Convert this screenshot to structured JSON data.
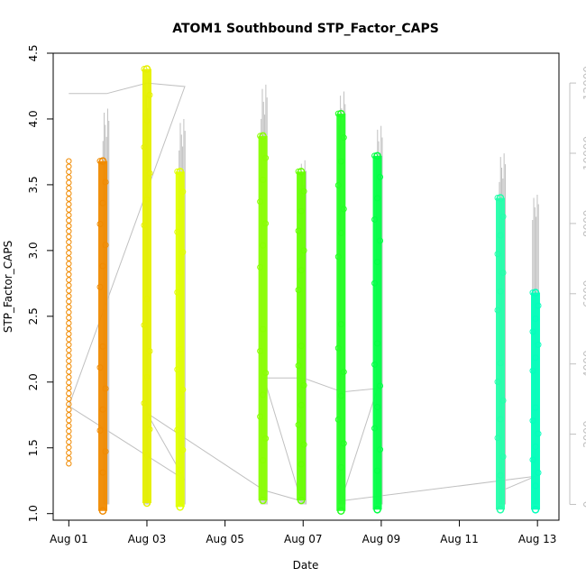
{
  "chart_data": {
    "type": "scatter",
    "title": "ATOM1 Southbound STP_Factor_CAPS",
    "xlabel": "Date",
    "ylabel": "STP_Factor_CAPS",
    "x_ticks": [
      "Aug 01",
      "Aug 03",
      "Aug 05",
      "Aug 07",
      "Aug 09",
      "Aug 11",
      "Aug 13"
    ],
    "x_tick_days": [
      1,
      3,
      5,
      7,
      9,
      11,
      13
    ],
    "xlim_days": [
      0.6,
      13.55
    ],
    "ylim": [
      0.95,
      4.5
    ],
    "y_ticks": [
      1.0,
      1.5,
      2.0,
      2.5,
      3.0,
      3.5,
      4.0,
      4.5
    ],
    "right_axis": {
      "ylim": [
        -450,
        12850
      ],
      "ticks": [
        0,
        2000,
        4000,
        6000,
        8000,
        10000,
        12000
      ],
      "color": "#c0c0c0"
    },
    "clusters": [
      {
        "day": 1.0,
        "min": 1.38,
        "max": 3.68,
        "color": "#f08a00",
        "style": "sparse"
      },
      {
        "day": 1.87,
        "min": 1.02,
        "max": 3.68,
        "color": "#f08a00",
        "style": "dense"
      },
      {
        "day": 3.0,
        "min": 1.08,
        "max": 4.38,
        "color": "#e6f000",
        "style": "dense"
      },
      {
        "day": 3.85,
        "min": 1.05,
        "max": 3.6,
        "color": "#e0ff00",
        "style": "dense"
      },
      {
        "day": 5.97,
        "min": 1.1,
        "max": 3.87,
        "color": "#88ff00",
        "style": "dense"
      },
      {
        "day": 6.95,
        "min": 1.1,
        "max": 3.6,
        "color": "#66ff00",
        "style": "dense"
      },
      {
        "day": 7.97,
        "min": 1.02,
        "max": 4.04,
        "color": "#22ff22",
        "style": "dense"
      },
      {
        "day": 8.9,
        "min": 1.03,
        "max": 3.72,
        "color": "#00ff44",
        "style": "dense"
      },
      {
        "day": 12.05,
        "min": 1.03,
        "max": 3.4,
        "color": "#22ffaa",
        "style": "dense"
      },
      {
        "day": 12.95,
        "min": 1.03,
        "max": 2.68,
        "color": "#00ffbb",
        "style": "dense"
      }
    ],
    "count_series": {
      "color": "#c0c0c0",
      "spikes": [
        {
          "day": 1.95,
          "max": 11500
        },
        {
          "day": 3.0,
          "max": 12400
        },
        {
          "day": 3.9,
          "max": 11200
        },
        {
          "day": 6.0,
          "max": 12200
        },
        {
          "day": 7.0,
          "max": 10000
        },
        {
          "day": 8.0,
          "max": 12000
        },
        {
          "day": 8.95,
          "max": 11000
        },
        {
          "day": 12.1,
          "max": 10200
        },
        {
          "day": 12.95,
          "max": 9000
        }
      ],
      "path": [
        [
          1.0,
          11700
        ],
        [
          1.97,
          11700
        ],
        [
          3.0,
          12000
        ],
        [
          3.97,
          11900
        ],
        [
          1.0,
          2800
        ],
        [
          3.97,
          700
        ],
        [
          3.0,
          2600
        ],
        [
          6.0,
          400
        ],
        [
          6.95,
          100
        ],
        [
          6.0,
          3600
        ],
        [
          7.0,
          3600
        ],
        [
          8.0,
          3200
        ],
        [
          8.9,
          3300
        ],
        [
          7.97,
          100
        ],
        [
          12.95,
          800
        ],
        [
          12.1,
          400
        ]
      ]
    }
  }
}
